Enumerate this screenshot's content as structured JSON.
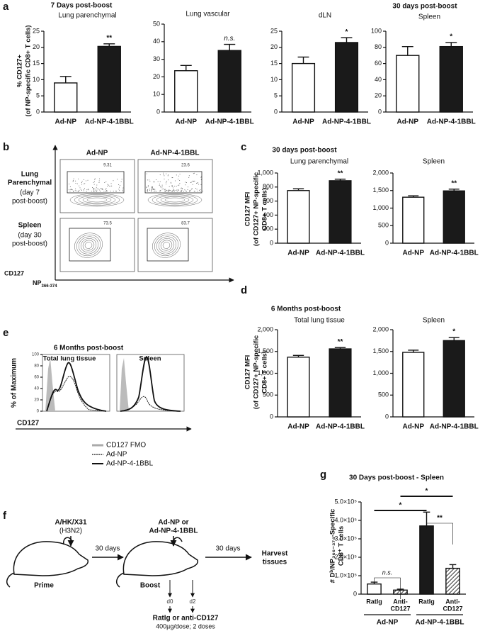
{
  "panel_labels": [
    "a",
    "b",
    "c",
    "d",
    "e",
    "f",
    "g"
  ],
  "chart_data": [
    {
      "type": "bar",
      "header": "7 Days post-boost",
      "subtitle": "Lung parenchymal",
      "ylabel": [
        "% CD127+",
        "(of NP-specific CD8+ T cells)"
      ],
      "categories": [
        "Ad-NP",
        "Ad-NP-4-1BBL"
      ],
      "values": [
        9,
        20.3
      ],
      "errors": [
        2,
        0.8
      ],
      "colors": [
        "#ffffff",
        "#1a1a1a"
      ],
      "annotation": "**",
      "ylim": [
        0,
        25
      ],
      "yticks": [
        0,
        5,
        10,
        15,
        20,
        25
      ]
    },
    {
      "type": "bar",
      "subtitle": "Lung vascular",
      "categories": [
        "Ad-NP",
        "Ad-NP-4-1BBL"
      ],
      "values": [
        23.5,
        35
      ],
      "errors": [
        3,
        3.5
      ],
      "colors": [
        "#ffffff",
        "#1a1a1a"
      ],
      "annotation": "n.s.",
      "ylim": [
        0,
        50
      ],
      "yticks": [
        0,
        10,
        20,
        30,
        40,
        50
      ]
    },
    {
      "type": "bar",
      "subtitle": "dLN",
      "categories": [
        "Ad-NP",
        "Ad-NP-4-1BBL"
      ],
      "values": [
        15,
        21.5
      ],
      "errors": [
        2,
        1.5
      ],
      "colors": [
        "#ffffff",
        "#1a1a1a"
      ],
      "annotation": "*",
      "ylim": [
        0,
        25
      ],
      "yticks": [
        0,
        5,
        10,
        15,
        20,
        25
      ]
    },
    {
      "type": "bar",
      "header": "30 days post-boost",
      "subtitle": "Spleen",
      "categories": [
        "Ad-NP",
        "Ad-NP-4-1BBL"
      ],
      "values": [
        70,
        81
      ],
      "errors": [
        11,
        5
      ],
      "colors": [
        "#ffffff",
        "#1a1a1a"
      ],
      "annotation": "*",
      "ylim": [
        0,
        100
      ],
      "yticks": [
        0,
        20,
        40,
        60,
        80,
        100
      ]
    },
    {
      "type": "bar",
      "header": "30 days post-boost",
      "subtitle": "Lung parenchymal",
      "ylabel": [
        "CD127 MFI",
        "(of CD127+ NP-specific",
        "CD8+ T cells)"
      ],
      "categories": [
        "Ad-NP",
        "Ad-NP-4-1BBL"
      ],
      "values": [
        750,
        890
      ],
      "errors": [
        25,
        22
      ],
      "colors": [
        "#ffffff",
        "#1a1a1a"
      ],
      "annotation": "**",
      "ylim": [
        0,
        1000
      ],
      "yticks": [
        0,
        200,
        400,
        600,
        800,
        {
          "value": 1000,
          "label": "1,000"
        }
      ]
    },
    {
      "type": "bar",
      "subtitle": "Spleen",
      "categories": [
        "Ad-NP",
        "Ad-NP-4-1BBL"
      ],
      "values": [
        1310,
        1490
      ],
      "errors": [
        40,
        50
      ],
      "colors": [
        "#ffffff",
        "#1a1a1a"
      ],
      "annotation": "**",
      "ylim": [
        0,
        2000
      ],
      "yticks": [
        0,
        500,
        {
          "value": 1000,
          "label": "1,000"
        },
        {
          "value": 1500,
          "label": "1,500"
        },
        {
          "value": 2000,
          "label": "2,000"
        }
      ]
    },
    {
      "type": "bar",
      "header": "6 Months post-boost",
      "subtitle": "Total lung tissue",
      "ylabel": [
        "CD127 MFI",
        "(of CD127+ NP-specific",
        "CD8+ T cells)"
      ],
      "categories": [
        "Ad-NP",
        "Ad-NP-4-1BBL"
      ],
      "values": [
        1370,
        1560
      ],
      "errors": [
        40,
        30
      ],
      "colors": [
        "#ffffff",
        "#1a1a1a"
      ],
      "annotation": "**",
      "ylim": [
        0,
        2000
      ],
      "yticks": [
        0,
        500,
        {
          "value": 1000,
          "label": "1,000"
        },
        {
          "value": 1500,
          "label": "1,500"
        },
        {
          "value": 2000,
          "label": "2,000"
        }
      ]
    },
    {
      "type": "bar",
      "subtitle": "Spleen",
      "categories": [
        "Ad-NP",
        "Ad-NP-4-1BBL"
      ],
      "values": [
        1480,
        1750
      ],
      "errors": [
        50,
        70
      ],
      "colors": [
        "#ffffff",
        "#1a1a1a"
      ],
      "annotation": "*",
      "ylim": [
        0,
        2000
      ],
      "yticks": [
        0,
        500,
        {
          "value": 1000,
          "label": "1,000"
        },
        {
          "value": 1500,
          "label": "1,500"
        },
        {
          "value": 2000,
          "label": "2,000"
        }
      ]
    },
    {
      "type": "bar",
      "header": "30 Days post-boost - Spleen",
      "ylabel": [
        "# Dᵇ/NP₃₆₆₋₃₇₄-Specific",
        "CD8⁺ T cells"
      ],
      "categories": [
        [
          "RatIg"
        ],
        [
          "Anti-",
          "CD127"
        ],
        [
          "RatIg"
        ],
        [
          "Anti-",
          "CD127"
        ]
      ],
      "groups": [
        "Ad-NP",
        "Ad-NP-4-1BBL"
      ],
      "values": [
        55000,
        22000,
        370000,
        140000
      ],
      "errors": [
        10000,
        5000,
        75000,
        20000
      ],
      "colors": [
        "#ffffff",
        "#555555",
        "#1a1a1a",
        "#555555"
      ],
      "hatched": [
        false,
        true,
        false,
        true
      ],
      "annotations": [
        "n.s.",
        "**",
        "*",
        "*"
      ],
      "ylim": [
        0,
        500000
      ],
      "yticks": [
        0,
        {
          "value": 100000,
          "label": "1.0×10⁵"
        },
        {
          "value": 200000,
          "label": "2.0×10⁵"
        },
        {
          "value": 300000,
          "label": "3.0×10⁵"
        },
        {
          "value": 400000,
          "label": "4.0×10⁵"
        },
        {
          "value": 500000,
          "label": "5.0×10⁵"
        }
      ]
    }
  ],
  "flow": {
    "columns": [
      "Ad-NP",
      "Ad-NP-4-1BBL"
    ],
    "rows": [
      [
        "Lung",
        "Parenchymal",
        "(day 7",
        "post-boost)"
      ],
      [
        "Spleen",
        "(day 30",
        "post-boost)"
      ]
    ],
    "gates": [
      9.31,
      23.6,
      73.5,
      83.7
    ],
    "ylabel": "CD127",
    "xlabel": [
      "NP",
      "366-374"
    ]
  },
  "histogram": {
    "header": "6 Months post-boost",
    "panels": [
      "Total lung tissue",
      "Spleen"
    ],
    "ylabel": "% of Maximum",
    "xlabel": "CD127",
    "yticks": [
      0,
      20,
      40,
      60,
      80,
      100
    ],
    "legend": [
      "CD127 FMO",
      "Ad-NP",
      "Ad-NP-4-1BBL"
    ]
  },
  "diagram": {
    "virus": [
      "A/HK/X31",
      "(H3N2)"
    ],
    "interval": "30 days",
    "prime": "Prime",
    "boost_vaccine": [
      "Ad-NP or",
      "Ad-NP-4-1BBL"
    ],
    "interval2": "30 days",
    "harvest": [
      "Harvest",
      "tissues"
    ],
    "boost": "Boost",
    "days": [
      "d0",
      "d2"
    ],
    "treatment": [
      "RatIg or anti-CD127",
      "400µg/dose; 2 doses"
    ]
  }
}
